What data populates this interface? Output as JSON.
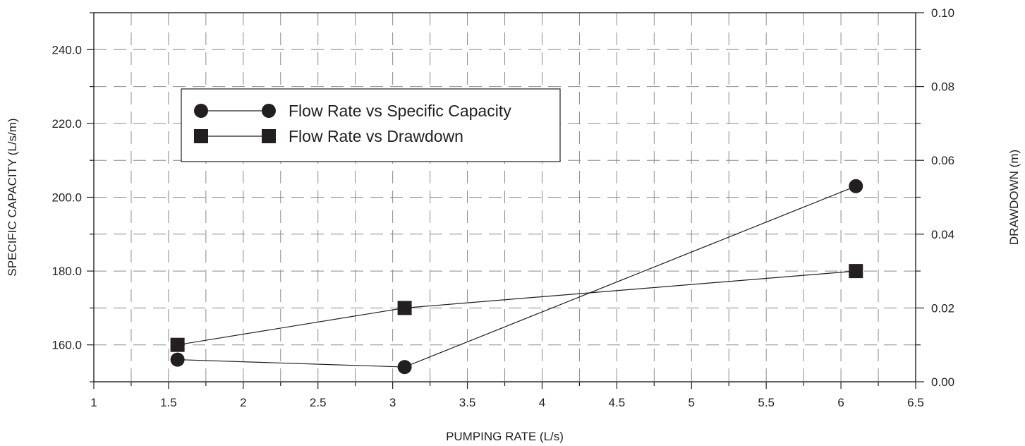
{
  "chart_data": {
    "type": "line",
    "title": "",
    "xlabel": "PUMPING RATE (L/s)",
    "ylabel": "SPECIFIC CAPACITY (L/s/m)",
    "y2label": "DRAWDOWN (m)",
    "xlim": [
      1,
      6.5
    ],
    "ylim": [
      150,
      250
    ],
    "y2lim": [
      0,
      0.1
    ],
    "x_ticks": [
      "1",
      "1.5",
      "2",
      "2.5",
      "3",
      "3.5",
      "4",
      "4.5",
      "5",
      "5.5",
      "6",
      "6.5"
    ],
    "y_ticks": [
      "160.0",
      "180.0",
      "200.0",
      "220.0",
      "240.0"
    ],
    "y2_ticks": [
      "0.00",
      "0.02",
      "0.04",
      "0.06",
      "0.08",
      "0.10"
    ],
    "grid": true,
    "legend_position": "top-left",
    "series": [
      {
        "name": "Flow Rate vs Specific Capacity",
        "axis": "left",
        "marker": "circle",
        "x": [
          1.56,
          3.08,
          6.1
        ],
        "y": [
          156,
          154,
          203
        ]
      },
      {
        "name": "Flow Rate vs Drawdown",
        "axis": "right",
        "marker": "square",
        "x": [
          1.56,
          3.08,
          6.1
        ],
        "y": [
          0.01,
          0.02,
          0.03
        ]
      }
    ],
    "colors": {
      "ink": "#231f20",
      "grid": "#8a8a8a",
      "background": "#ffffff"
    }
  }
}
